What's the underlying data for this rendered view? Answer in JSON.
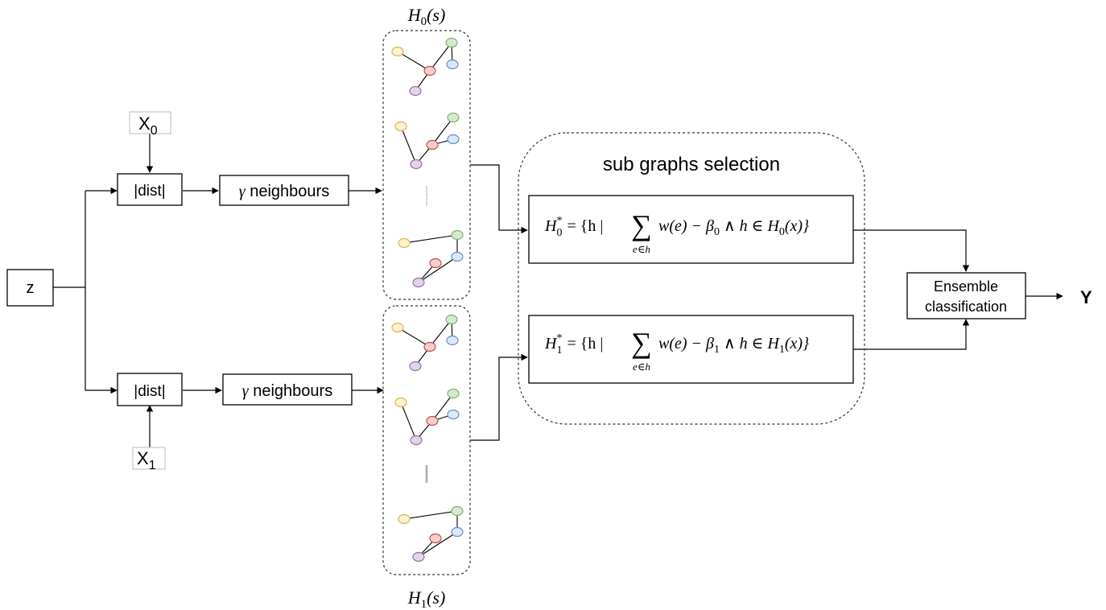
{
  "input": {
    "z_label": "z"
  },
  "branch0": {
    "x_label": "X",
    "x_sub": "0",
    "dist_label": "|dist|",
    "gamma_symbol": "γ",
    "neighbours_label": " neighbours",
    "set_label_main": "H",
    "set_label_sub": "0",
    "set_label_arg": "(s)"
  },
  "branch1": {
    "x_label": "X",
    "x_sub": "1",
    "dist_label": "|dist|",
    "gamma_symbol": "γ",
    "neighbours_label": " neighbours",
    "set_label_main": "H",
    "set_label_sub": "1",
    "set_label_arg": "(s)"
  },
  "selection": {
    "title": "sub graphs selection",
    "formula0": {
      "lhs": "H",
      "lhs_sub": "0",
      "lhs_sup": "*",
      "body": "= {h | ",
      "sum": "∑",
      "sum_under": "e∈h",
      "rest": "w(e) − β",
      "beta_sub": "0",
      "tail": " ∧ h ∈ H",
      "tail_sub": "0",
      "tail_arg": "(x)}"
    },
    "formula1": {
      "lhs": "H",
      "lhs_sub": "1",
      "lhs_sup": "*",
      "body": "= {h | ",
      "sum": "∑",
      "sum_under": "e∈h",
      "rest": "w(e) − β",
      "beta_sub": "1",
      "tail": " ∧ h ∈ H",
      "tail_sub": "1",
      "tail_arg": "(x)}"
    }
  },
  "ensemble": {
    "line1": "Ensemble",
    "line2": "classification"
  },
  "output": {
    "label": "Y"
  },
  "node_colors": {
    "yellow": {
      "fill": "#fff2cc",
      "stroke": "#d6b656"
    },
    "green": {
      "fill": "#d5e8d4",
      "stroke": "#82b366"
    },
    "blue": {
      "fill": "#dae8fc",
      "stroke": "#6c8ebf"
    },
    "red": {
      "fill": "#f8cecc",
      "stroke": "#b85450"
    },
    "purple": {
      "fill": "#e1d5e7",
      "stroke": "#9673a6"
    }
  }
}
